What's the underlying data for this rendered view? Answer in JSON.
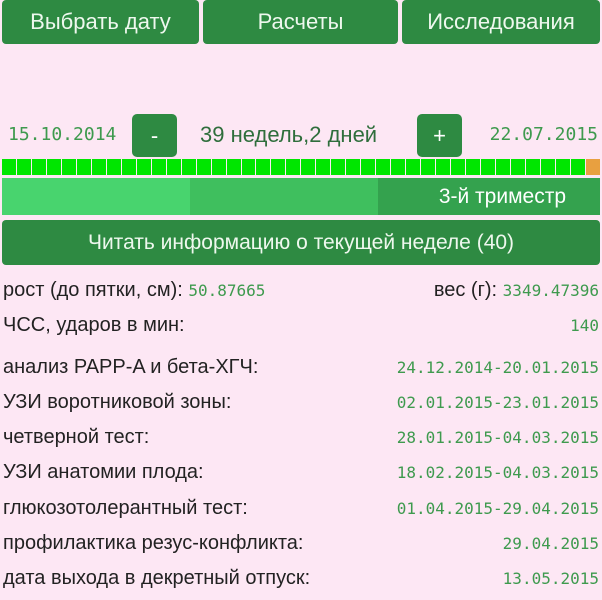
{
  "topbar": {
    "select_date": "Выбрать дату",
    "calculations": "Расчеты",
    "research": "Исследования"
  },
  "dates": {
    "start": "15.10.2014",
    "minus": "-",
    "duration": "39 недель,2 дней",
    "plus": "+",
    "end": "22.07.2015"
  },
  "progress": {
    "total_weeks": 40,
    "completed_weeks": 39,
    "current_week": 40,
    "done_color": "#00e600",
    "current_color": "#e8a040"
  },
  "trimester": {
    "label": "3-й триместр",
    "current": 3
  },
  "read_button": "Читать информацию о текущей неделе (40)",
  "stats": {
    "height_label": "рост (до пятки, см):",
    "height_value": "50.87665",
    "weight_label": "вес (г):",
    "weight_value": "3349.47396",
    "hr_label": "ЧСС, ударов в мин:",
    "hr_value": "140"
  },
  "schedule": [
    {
      "label": "анализ PAPP-A и бета-ХГЧ:",
      "value": "24.12.2014-20.01.2015"
    },
    {
      "label": "УЗИ воротниковой зоны:",
      "value": "02.01.2015-23.01.2015"
    },
    {
      "label": "четверной тест:",
      "value": "28.01.2015-04.03.2015"
    },
    {
      "label": "УЗИ анатомии плода:",
      "value": "18.02.2015-04.03.2015"
    },
    {
      "label": "глюкозотолерантный тест:",
      "value": "01.04.2015-29.04.2015"
    },
    {
      "label": "профилактика резус-конфликта:",
      "value": "29.04.2015"
    },
    {
      "label": "дата выхода в декретный отпуск:",
      "value": "13.05.2015"
    }
  ]
}
